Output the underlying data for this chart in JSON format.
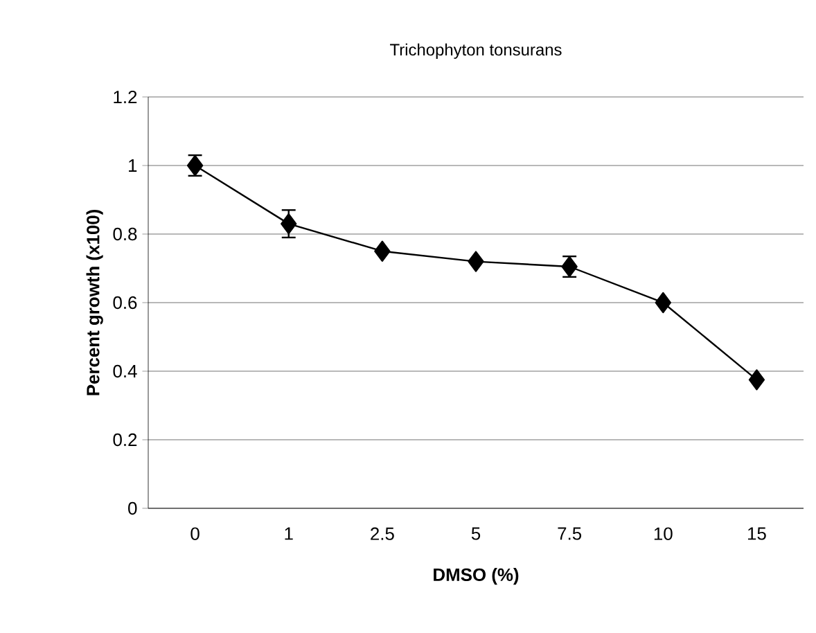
{
  "chart_data": {
    "type": "line",
    "title": "Trichophyton tonsurans",
    "xlabel": "DMSO (%)",
    "ylabel": "Percent growth (x100)",
    "categories": [
      "0",
      "1",
      "2.5",
      "5",
      "7.5",
      "10",
      "15"
    ],
    "series": [
      {
        "color": "#000000",
        "values": [
          1.0,
          0.83,
          0.75,
          0.72,
          0.705,
          0.6,
          0.375
        ],
        "errors": [
          0.03,
          0.04,
          null,
          null,
          0.03,
          null,
          null
        ]
      }
    ],
    "ylim": [
      0,
      1.2
    ],
    "yticks": [
      0,
      0.2,
      0.4,
      0.6,
      0.8,
      1,
      1.2
    ],
    "grid": "y",
    "marker": "diamond",
    "line_style": "solid"
  }
}
